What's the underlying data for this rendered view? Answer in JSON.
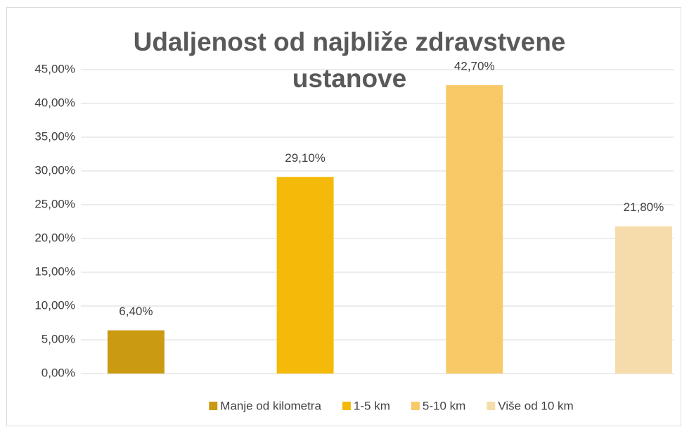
{
  "chart_data": {
    "type": "bar",
    "title": "Udaljenost od najbliže zdravstvene ustanove",
    "categories": [
      null
    ],
    "series": [
      {
        "name": "Manje od kilometra",
        "color": "#c99a12",
        "values": [
          6.4
        ],
        "value_labels": [
          "6,40%"
        ]
      },
      {
        "name": "1-5 km",
        "color": "#f5b90a",
        "values": [
          29.1
        ],
        "value_labels": [
          "29,10%"
        ]
      },
      {
        "name": "5-10 km",
        "color": "#f8c967",
        "values": [
          42.7
        ],
        "value_labels": [
          "42,70%"
        ]
      },
      {
        "name": "Više od 10 km",
        "color": "#f6dcaa",
        "values": [
          21.8
        ],
        "value_labels": [
          "21,80%"
        ]
      }
    ],
    "ylim": [
      0,
      45
    ],
    "yticks": [
      {
        "value": 0,
        "label": "0,00%"
      },
      {
        "value": 5,
        "label": "5,00%"
      },
      {
        "value": 10,
        "label": "10,00%"
      },
      {
        "value": 15,
        "label": "15,00%"
      },
      {
        "value": 20,
        "label": "20,00%"
      },
      {
        "value": 25,
        "label": "25,00%"
      },
      {
        "value": 30,
        "label": "30,00%"
      },
      {
        "value": 35,
        "label": "35,00%"
      },
      {
        "value": 40,
        "label": "40,00%"
      },
      {
        "value": 45,
        "label": "45,00%"
      }
    ],
    "grid": true,
    "legend": "bottom"
  }
}
